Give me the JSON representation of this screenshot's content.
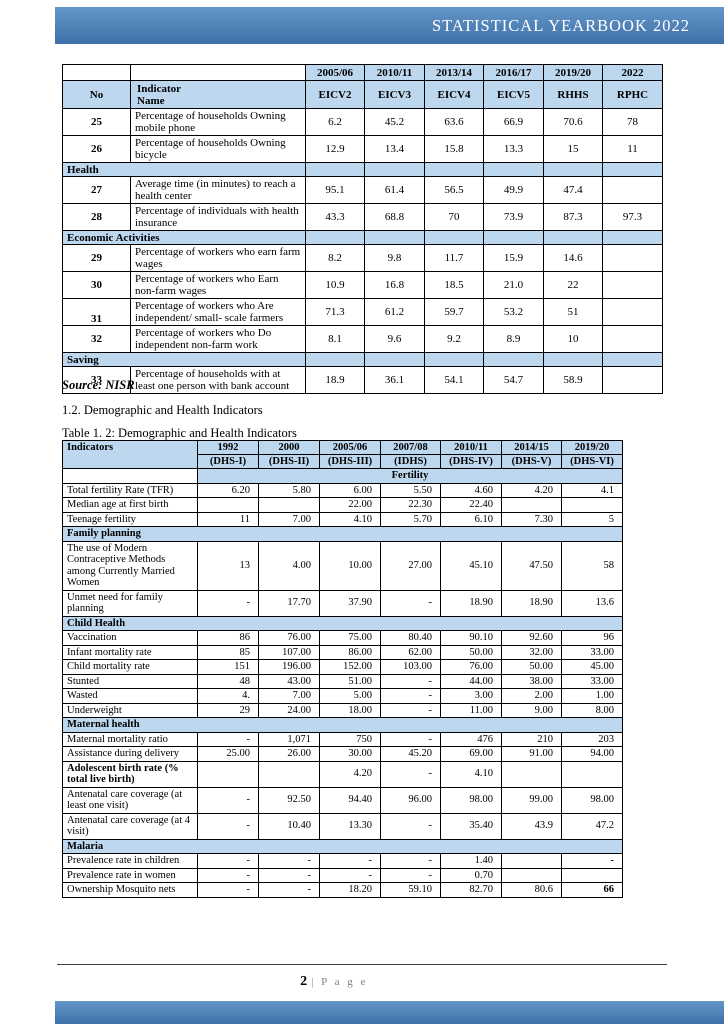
{
  "page": {
    "header_title": "STATISTICAL YEARBOOK 2022",
    "source_note": "Source: NISR",
    "section_heading": "1.2. Demographic and Health Indicators",
    "table2_caption": "Table 1. 2: Demographic and Health Indicators",
    "footer": {
      "page_number": "2",
      "page_label": "| P a g e"
    }
  },
  "colors": {
    "band_blue": "#3f70a9",
    "band_blue_light": "#6496c8",
    "cell_blue": "#bdd7ee"
  },
  "table1": {
    "col1_header": "No",
    "col2_header": "Indicator Name",
    "year_headers": [
      "2005/06",
      "2010/11",
      "2013/14",
      "2016/17",
      "2019/20",
      "2022"
    ],
    "survey_headers": [
      "EICV2",
      "EICV3",
      "EICV4",
      "EICV5",
      "RHHS",
      "RPHC"
    ],
    "rows": [
      {
        "type": "data",
        "no": "25",
        "indicator": "Percentage of households Owning mobile phone",
        "values": [
          "6.2",
          "45.2",
          "63.6",
          "66.9",
          "70.6",
          "78"
        ]
      },
      {
        "type": "data",
        "no": "26",
        "indicator": "Percentage of households Owning bicycle",
        "values": [
          "12.9",
          "13.4",
          "15.8",
          "13.3",
          "15",
          "11"
        ]
      },
      {
        "type": "section",
        "label": "Health"
      },
      {
        "type": "data",
        "no": "27",
        "indicator": "Average time (in minutes) to reach a health center",
        "values": [
          "95.1",
          "61.4",
          "56.5",
          "49.9",
          "47.4",
          ""
        ]
      },
      {
        "type": "data",
        "no": "28",
        "indicator": "Percentage of individuals with health insurance",
        "values": [
          "43.3",
          "68.8",
          "70",
          "73.9",
          "87.3",
          "97.3"
        ]
      },
      {
        "type": "section",
        "label": "Economic Activities"
      },
      {
        "type": "data",
        "no": "29",
        "indicator": "Percentage of workers who earn farm wages",
        "values": [
          "8.2",
          "9.8",
          "11.7",
          "15.9",
          "14.6",
          ""
        ]
      },
      {
        "type": "data",
        "no": "30",
        "indicator": "Percentage of workers who Earn non-farm wages",
        "values": [
          "10.9",
          "16.8",
          "18.5",
          "21.0",
          "22",
          ""
        ]
      },
      {
        "type": "data",
        "no": "31",
        "no_valign": "bottom",
        "indicator": "Percentage of workers who Are independent/ small- scale farmers",
        "values": [
          "71.3",
          "61.2",
          "59.7",
          "53.2",
          "51",
          ""
        ]
      },
      {
        "type": "data",
        "no": "32",
        "indicator": "Percentage of workers who Do independent non-farm work",
        "values": [
          "8.1",
          "9.6",
          "9.2",
          "8.9",
          "10",
          ""
        ]
      },
      {
        "type": "section",
        "label": "Saving"
      },
      {
        "type": "data",
        "no": "33",
        "indicator": "Percentage of households with at least one person with bank account",
        "values": [
          "18.9",
          "36.1",
          "54.1",
          "54.7",
          "58.9",
          ""
        ]
      }
    ]
  },
  "table2": {
    "col1_header": "Indicators",
    "year_headers": [
      "1992",
      "2000",
      "2005/06",
      "2007/08",
      "2010/11",
      "2014/15",
      "2019/20"
    ],
    "survey_headers": [
      "(DHS-I)",
      "(DHS-II)",
      "(DHS-III)",
      "(IDHS)",
      "(DHS-IV)",
      "(DHS-V)",
      "(DHS-VI)"
    ],
    "rows": [
      {
        "type": "section",
        "label": "Fertility",
        "span_data": true
      },
      {
        "type": "data",
        "indicator": "Total fertility Rate (TFR)",
        "values": [
          "6.20",
          "5.80",
          "6.00",
          "5.50",
          "4.60",
          "4.20",
          "4.1"
        ]
      },
      {
        "type": "data",
        "indicator": "Median age at first birth",
        "values": [
          "",
          "",
          "22.00",
          "22.30",
          "22.40",
          "",
          ""
        ]
      },
      {
        "type": "data",
        "indicator": "Teenage fertility",
        "values": [
          "11",
          "7.00",
          "4.10",
          "5.70",
          "6.10",
          "7.30",
          "5"
        ]
      },
      {
        "type": "section",
        "label": "Family planning"
      },
      {
        "type": "data",
        "indicator": "The use of Modern Contraceptive Methods among Currently Married Women",
        "values": [
          "13",
          "4.00",
          "10.00",
          "27.00",
          "45.10",
          "47.50",
          "58"
        ]
      },
      {
        "type": "data",
        "indicator": "Unmet need for family planning",
        "values": [
          "-",
          "17.70",
          "37.90",
          "-",
          "18.90",
          "18.90",
          "13.6"
        ]
      },
      {
        "type": "section",
        "label": "Child Health"
      },
      {
        "type": "data",
        "indicator": "Vaccination",
        "values": [
          "86",
          "76.00",
          "75.00",
          "80.40",
          "90.10",
          "92.60",
          "96"
        ]
      },
      {
        "type": "data",
        "indicator": "Infant mortality rate",
        "values": [
          "85",
          "107.00",
          "86.00",
          "62.00",
          "50.00",
          "32.00",
          "33.00"
        ]
      },
      {
        "type": "data",
        "indicator": "Child mortality rate",
        "values": [
          "151",
          "196.00",
          "152.00",
          "103.00",
          "76.00",
          "50.00",
          "45.00"
        ]
      },
      {
        "type": "data",
        "indicator": "Stunted",
        "values": [
          "48",
          "43.00",
          "51.00",
          "-",
          "44.00",
          "38.00",
          "33.00"
        ]
      },
      {
        "type": "data",
        "indicator": "Wasted",
        "values": [
          "4.",
          "7.00",
          "5.00",
          "-",
          "3.00",
          "2.00",
          "1.00"
        ]
      },
      {
        "type": "data",
        "indicator": "Underweight",
        "values": [
          "29",
          "24.00",
          "18.00",
          "-",
          "11.00",
          "9.00",
          "8.00"
        ]
      },
      {
        "type": "section",
        "label": "Maternal health"
      },
      {
        "type": "data",
        "indicator": "Maternal mortality ratio",
        "values": [
          "-",
          "1,071",
          "750",
          "-",
          "476",
          "210",
          "203"
        ]
      },
      {
        "type": "data",
        "indicator": "Assistance during delivery",
        "values": [
          "25.00",
          "26.00",
          "30.00",
          "45.20",
          "69.00",
          "91.00",
          "94.00"
        ]
      },
      {
        "type": "data",
        "bold": true,
        "indicator": "Adolescent birth rate (% total live birth)",
        "values": [
          "",
          "",
          "4.20",
          "-",
          "4.10",
          "",
          ""
        ]
      },
      {
        "type": "data",
        "indicator": "Antenatal care coverage (at least one visit)",
        "values": [
          "-",
          "92.50",
          "94.40",
          "96.00",
          "98.00",
          "99.00",
          "98.00"
        ]
      },
      {
        "type": "data",
        "indicator": "Antenatal care coverage (at 4 visit)",
        "values": [
          "-",
          "10.40",
          "13.30",
          "-",
          "35.40",
          "43.9",
          "47.2"
        ]
      },
      {
        "type": "section",
        "label": "Malaria"
      },
      {
        "type": "data",
        "indicator": "Prevalence rate in children",
        "bold_values": [
          6
        ],
        "values": [
          "-",
          "-",
          "-",
          "-",
          "1.40",
          "",
          "-"
        ]
      },
      {
        "type": "data",
        "indicator": "Prevalence rate in women",
        "values": [
          "-",
          "-",
          "-",
          "-",
          "0.70",
          "",
          ""
        ]
      },
      {
        "type": "data",
        "indicator": "Ownership Mosquito nets",
        "bold_values": [
          6
        ],
        "values": [
          "-",
          "-",
          "18.20",
          "59.10",
          "82.70",
          "80.6",
          "66"
        ]
      }
    ]
  }
}
